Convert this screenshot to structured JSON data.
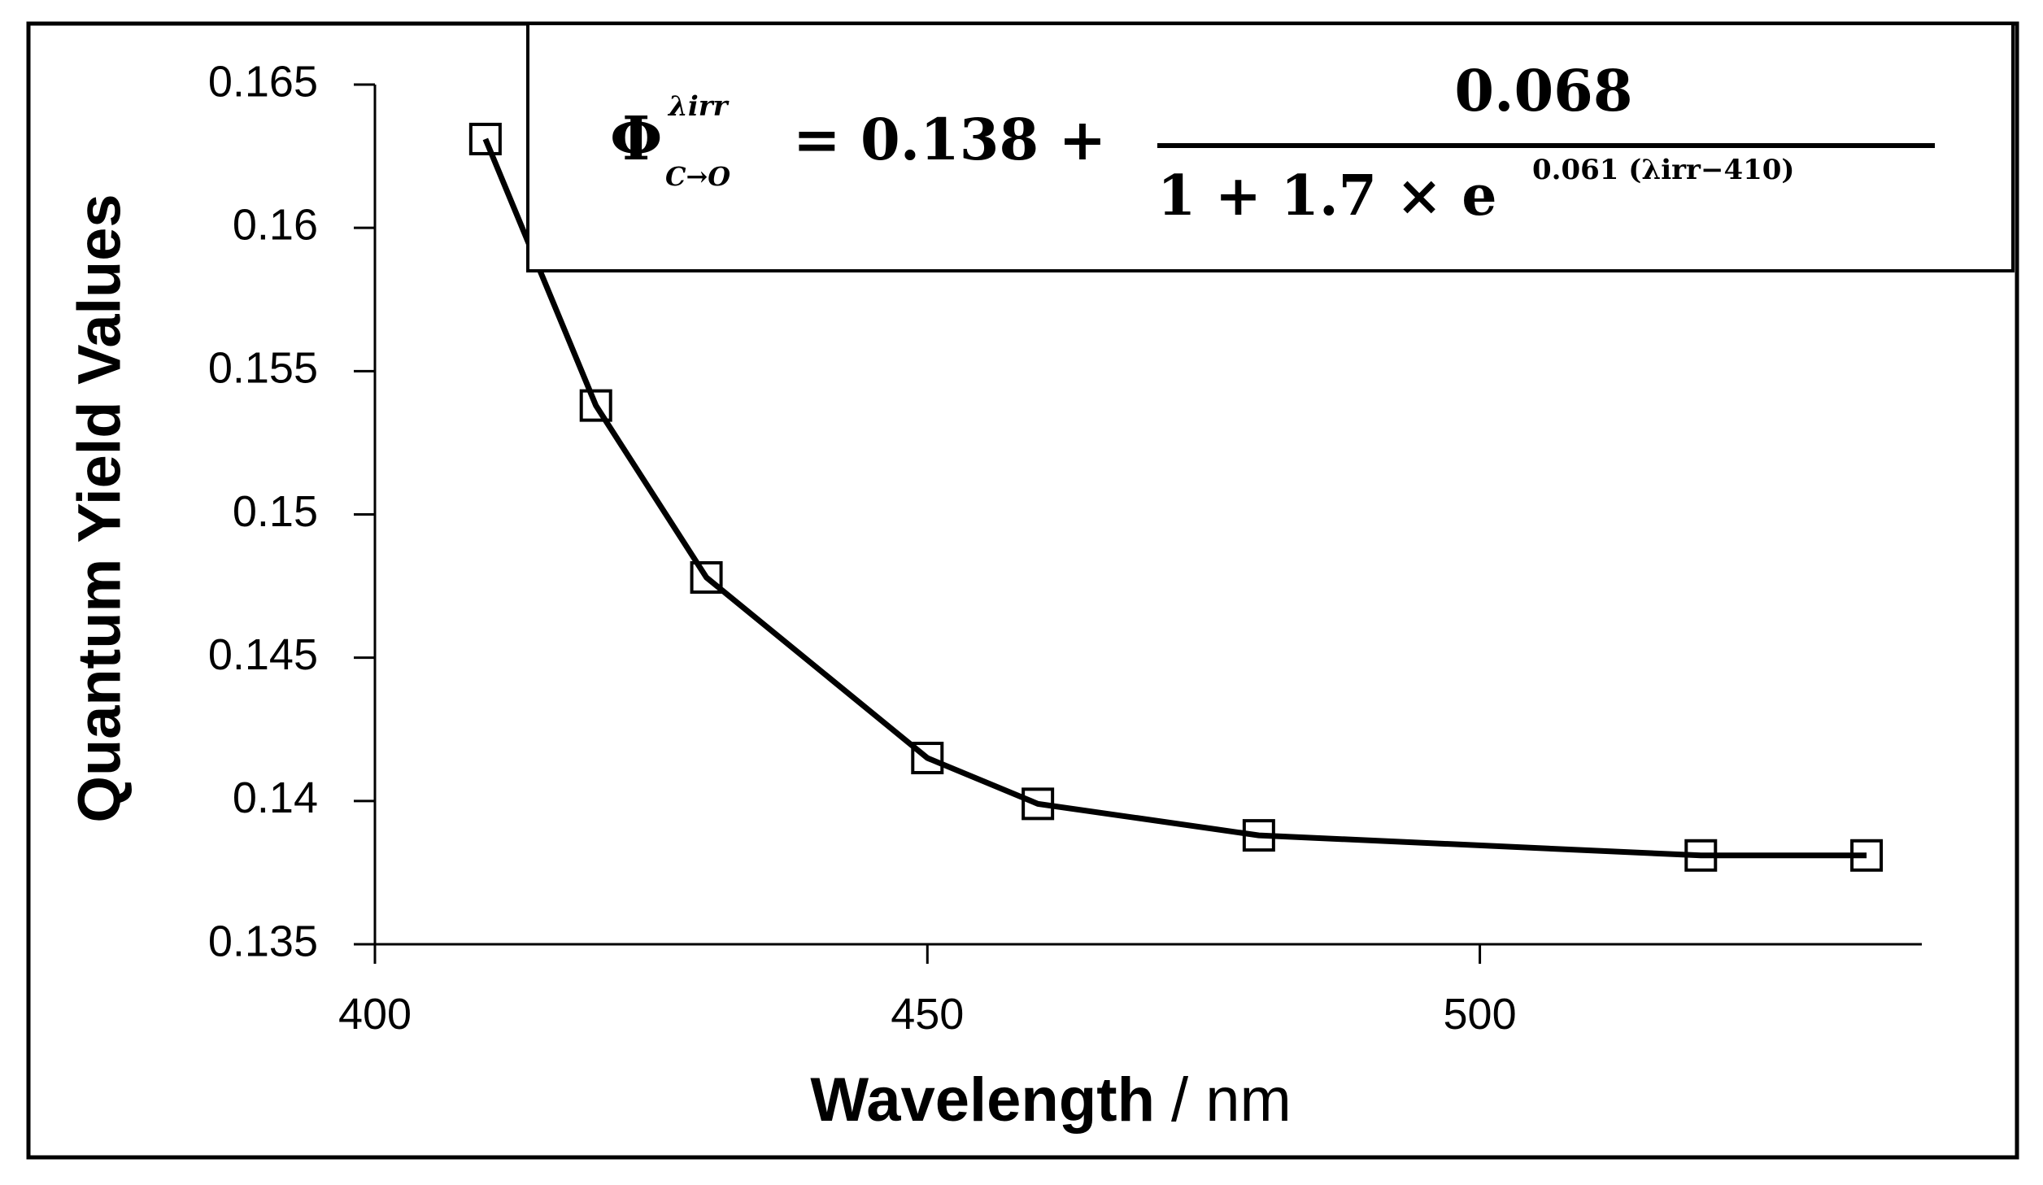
{
  "chart_data": {
    "type": "line",
    "marker": "square",
    "color": "#000000",
    "x": [
      410,
      420,
      430,
      450,
      460,
      480,
      520,
      535
    ],
    "values": [
      0.1631,
      0.1538,
      0.1478,
      0.1415,
      0.1399,
      0.1388,
      0.1381,
      0.1381
    ],
    "xlim": [
      400,
      540
    ],
    "xticks": [
      400,
      450,
      500
    ],
    "ylim": [
      0.135,
      0.165
    ],
    "yticks": [
      0.135,
      0.14,
      0.145,
      0.15,
      0.155,
      0.16,
      0.165
    ],
    "xlabel": "Wavelength",
    "xlabel_unit": "/ nm",
    "ylabel": "Quantum Yield Values",
    "annotation": {
      "symbol": "Φ",
      "superscript": "λirr",
      "subscript": "C→O",
      "lhs_rest": "= 0.138 +",
      "numerator": "0.068",
      "denominator": "1 + 1.7 × e",
      "exponent": "0.061 (λirr−410)"
    }
  }
}
